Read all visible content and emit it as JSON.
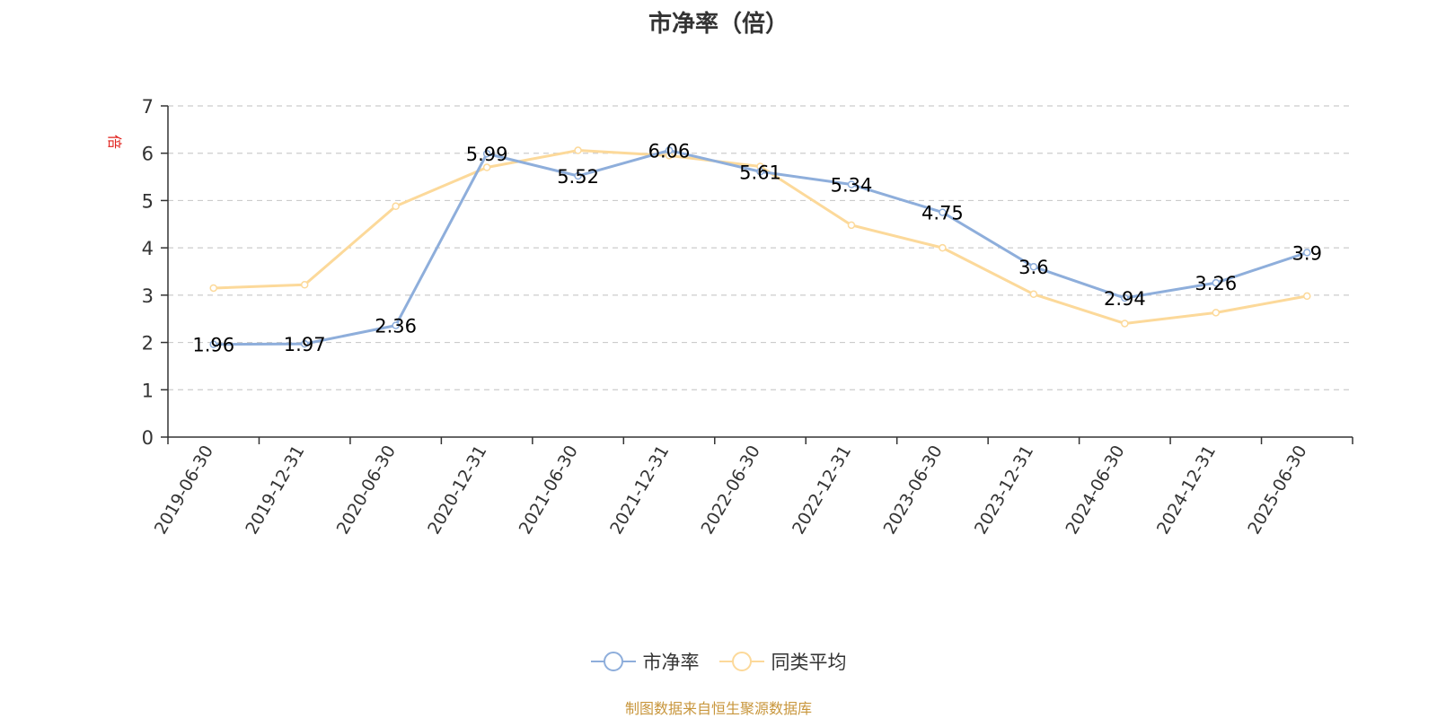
{
  "chart_data": {
    "type": "line",
    "title": "市净率（倍）",
    "ylabel": "倍",
    "ylim": [
      0,
      7
    ],
    "yticks": [
      0,
      1,
      2,
      3,
      4,
      5,
      6,
      7
    ],
    "grid": true,
    "legend_position": "bottom",
    "categories": [
      "2019-06-30",
      "2019-12-31",
      "2020-06-30",
      "2020-12-31",
      "2021-06-30",
      "2021-12-31",
      "2022-06-30",
      "2022-12-31",
      "2023-06-30",
      "2023-12-31",
      "2024-06-30",
      "2024-12-31",
      "2025-06-30"
    ],
    "series": [
      {
        "name": "市净率",
        "color": "#8eaedb",
        "values": [
          1.96,
          1.97,
          2.36,
          5.99,
          5.52,
          6.06,
          5.61,
          5.34,
          4.75,
          3.6,
          2.94,
          3.26,
          3.9
        ],
        "labels": [
          "1.96",
          "1.97",
          "2.36",
          "5.99",
          "5.52",
          "6.06",
          "5.61",
          "5.34",
          "4.75",
          "3.6",
          "2.94",
          "3.26",
          "3.9"
        ]
      },
      {
        "name": "同类平均",
        "color": "#fcd99a",
        "values": [
          3.15,
          3.22,
          4.88,
          5.7,
          6.06,
          5.95,
          5.72,
          4.48,
          4.0,
          3.02,
          2.4,
          2.63,
          2.98
        ]
      }
    ]
  },
  "source_note": "制图数据来自恒生聚源数据库"
}
